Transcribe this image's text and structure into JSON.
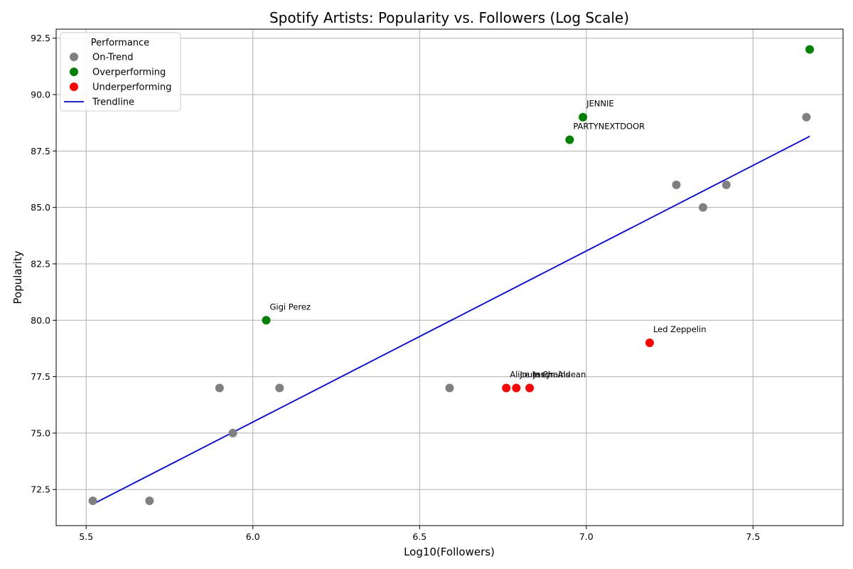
{
  "chart_data": {
    "type": "scatter",
    "title": "Spotify Artists: Popularity vs. Followers (Log Scale)",
    "xlabel": "Log10(Followers)",
    "ylabel": "Popularity",
    "xlim": [
      5.41,
      7.77
    ],
    "ylim": [
      70.9,
      92.9
    ],
    "xticks": [
      5.5,
      6.0,
      6.5,
      7.0,
      7.5
    ],
    "xtick_labels": [
      "5.5",
      "6.0",
      "6.5",
      "7.0",
      "7.5"
    ],
    "yticks": [
      72.5,
      75.0,
      77.5,
      80.0,
      82.5,
      85.0,
      87.5,
      90.0,
      92.5
    ],
    "ytick_labels": [
      "72.5",
      "75.0",
      "77.5",
      "80.0",
      "82.5",
      "85.0",
      "87.5",
      "90.0",
      "92.5"
    ],
    "grid": true,
    "legend": {
      "title": "Performance",
      "placement": "top-left",
      "entries": [
        {
          "label": "On-Trend",
          "kind": "marker",
          "color": "#808080"
        },
        {
          "label": "Overperforming",
          "kind": "marker",
          "color": "#008000"
        },
        {
          "label": "Underperforming",
          "kind": "marker",
          "color": "#ff0000"
        },
        {
          "label": "Trendline",
          "kind": "line",
          "color": "#0000ff"
        }
      ]
    },
    "series": [
      {
        "name": "On-Trend",
        "color": "#808080",
        "points": [
          {
            "x": 5.52,
            "y": 72
          },
          {
            "x": 5.69,
            "y": 72
          },
          {
            "x": 5.9,
            "y": 77
          },
          {
            "x": 5.94,
            "y": 75
          },
          {
            "x": 6.08,
            "y": 77
          },
          {
            "x": 6.59,
            "y": 77
          },
          {
            "x": 7.27,
            "y": 86
          },
          {
            "x": 7.35,
            "y": 85
          },
          {
            "x": 7.42,
            "y": 86
          },
          {
            "x": 7.66,
            "y": 89
          }
        ]
      },
      {
        "name": "Overperforming",
        "color": "#008000",
        "points": [
          {
            "x": 6.04,
            "y": 80,
            "label": "Gigi Perez"
          },
          {
            "x": 6.95,
            "y": 88,
            "label": "PARTYNEXTDOOR"
          },
          {
            "x": 6.99,
            "y": 89,
            "label": "JENNIE"
          },
          {
            "x": 7.67,
            "y": 92
          }
        ]
      },
      {
        "name": "Underperforming",
        "color": "#ff0000",
        "points": [
          {
            "x": 6.76,
            "y": 77,
            "label": "Alice In Chains"
          },
          {
            "x": 6.79,
            "y": 77,
            "label": "Journey"
          },
          {
            "x": 6.83,
            "y": 77,
            "label": "Jason Aldean"
          },
          {
            "x": 7.19,
            "y": 79,
            "label": "Led Zeppelin"
          }
        ]
      }
    ],
    "trendline": {
      "name": "Trendline",
      "color": "#0000ff",
      "points": [
        {
          "x": 5.52,
          "y": 71.85
        },
        {
          "x": 7.67,
          "y": 88.15
        }
      ]
    }
  }
}
